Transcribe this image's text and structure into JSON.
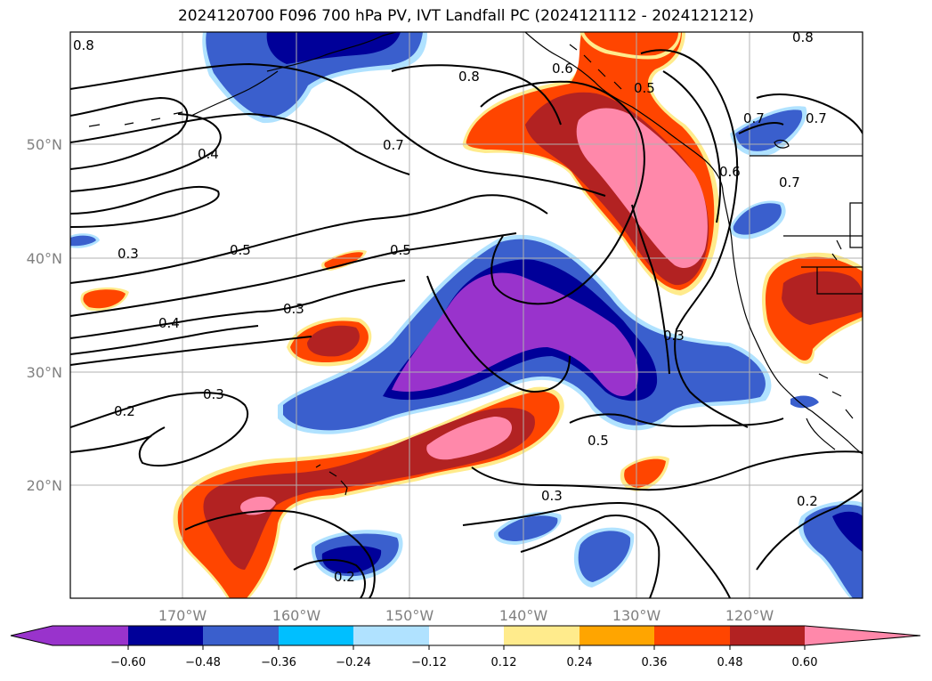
{
  "title": "2024120700 F096 700 hPa PV, IVT Landfall PC (2024121112 - 2024121212)",
  "longitude_ticks": [
    "170°W",
    "160°W",
    "150°W",
    "140°W",
    "130°W",
    "120°W"
  ],
  "latitude_ticks": [
    "50°N",
    "40°N",
    "30°N",
    "20°N"
  ],
  "colorbar": {
    "tick_labels": [
      "−0.60",
      "−0.48",
      "−0.36",
      "−0.24",
      "−0.12",
      "0.12",
      "0.24",
      "0.36",
      "0.48",
      "0.60"
    ],
    "colors": [
      "#9933cc",
      "#000099",
      "#3a5fcd",
      "#00bfff",
      "#b0e2ff",
      "#ffffff",
      "#ffeb8c",
      "#ffa500",
      "#ff4500",
      "#b22222",
      "#ff88aa"
    ]
  },
  "contour_labels": [
    "0.8",
    "0.8",
    "0.6",
    "0.5",
    "0.8",
    "0.7",
    "0.7",
    "0.4",
    "0.7",
    "0.6",
    "0.7",
    "0.3",
    "0.5",
    "0.5",
    "0.3",
    "0.4",
    "0.3",
    "0.3",
    "0.2",
    "0.5",
    "0.3",
    "0.2",
    "0.2"
  ],
  "colors": {
    "purple": "#9933cc",
    "navy": "#000099",
    "blue": "#3a5fcd",
    "cyan": "#00bfff",
    "lightblue": "#b0e2ff",
    "yellow": "#ffeb8c",
    "orange": "#ffa500",
    "redorange": "#ff4500",
    "firebrick": "#b22222",
    "pink": "#ff88aa",
    "grid": "#b0b0b0"
  }
}
